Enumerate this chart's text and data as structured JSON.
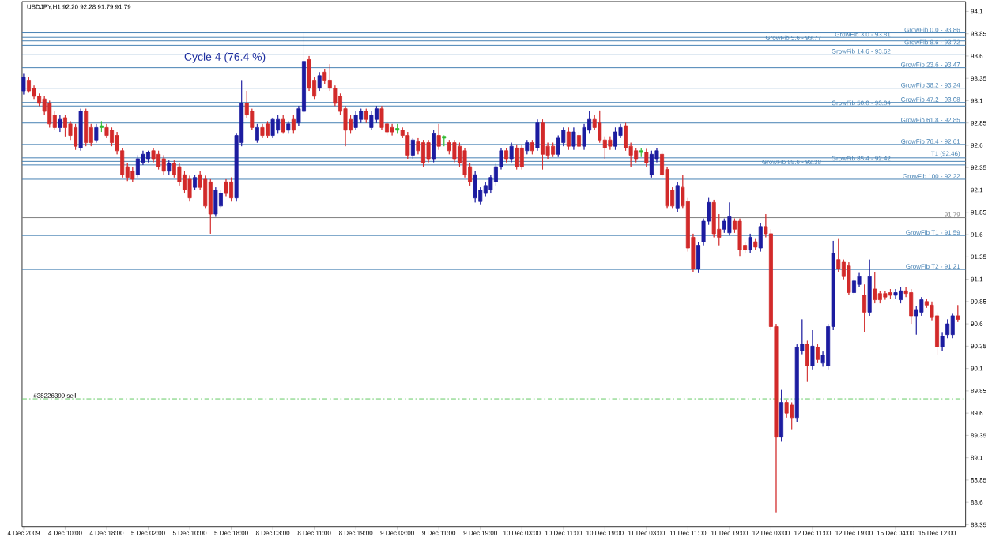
{
  "chart_data": {
    "type": "candlestick",
    "title": "USDJPY,H1  92.20 92.28 91.79 91.79",
    "annotations": [
      "Cycle 4  (76.4 %)"
    ],
    "categories": [
      "4 Dec 2009",
      null,
      null,
      null,
      null,
      null,
      null,
      null,
      "4 Dec 10:00",
      null,
      null,
      null,
      null,
      null,
      null,
      null,
      "4 Dec 18:00",
      null,
      null,
      null,
      null,
      null,
      null,
      null,
      "5 Dec 02:00",
      null,
      null,
      null,
      null,
      null,
      null,
      null,
      "5 Dec 10:00",
      null,
      null,
      null,
      null,
      null,
      null,
      null,
      "5 Dec 18:00",
      null,
      null,
      null,
      null,
      null,
      null,
      null,
      "8 Dec 03:00",
      null,
      null,
      null,
      null,
      null,
      null,
      null,
      "8 Dec 11:00",
      null,
      null,
      null,
      null,
      null,
      null,
      null,
      "8 Dec 19:00",
      null,
      null,
      null,
      null,
      null,
      null,
      null,
      "9 Dec 03:00",
      null,
      null,
      null,
      null,
      null,
      null,
      null,
      "9 Dec 11:00",
      null,
      null,
      null,
      null,
      null,
      null,
      null,
      "9 Dec 19:00",
      null,
      null,
      null,
      null,
      null,
      null,
      null,
      "10 Dec 03:00",
      null,
      null,
      null,
      null,
      null,
      null,
      null,
      "10 Dec 11:00",
      null,
      null,
      null,
      null,
      null,
      null,
      null,
      "10 Dec 19:00",
      null,
      null,
      null,
      null,
      null,
      null,
      null,
      "11 Dec 03:00",
      null,
      null,
      null,
      null,
      null,
      null,
      null,
      "11 Dec 11:00",
      null,
      null,
      null,
      null,
      null,
      null,
      null,
      "11 Dec 19:00",
      null,
      null,
      null,
      null,
      null,
      null,
      null,
      "12 Dec 03:00",
      null,
      null,
      null,
      null,
      null,
      null,
      null,
      "12 Dec 11:00",
      null,
      null,
      null,
      null,
      null,
      null,
      null,
      "12 Dec 19:00",
      null,
      null,
      null,
      null,
      null,
      null,
      null,
      "15 Dec 04:00",
      null,
      null,
      null,
      null,
      null,
      null,
      null,
      "15 Dec 12:00",
      null,
      null,
      null,
      null
    ],
    "ohlc": [
      [
        93.21,
        93.4,
        93.17,
        93.36
      ],
      [
        93.33,
        93.36,
        93.19,
        93.21
      ],
      [
        93.24,
        93.27,
        93.12,
        93.15
      ],
      [
        93.15,
        93.18,
        93.04,
        93.07
      ],
      [
        93.12,
        93.15,
        92.94,
        92.98
      ],
      [
        93.07,
        93.1,
        92.8,
        92.84
      ],
      [
        92.94,
        92.98,
        92.77,
        92.8
      ],
      [
        92.8,
        92.94,
        92.75,
        92.89
      ],
      [
        92.91,
        92.94,
        92.7,
        92.8
      ],
      [
        92.84,
        92.87,
        92.66,
        92.71
      ],
      [
        92.8,
        92.84,
        92.55,
        92.59
      ],
      [
        92.57,
        93.01,
        92.54,
        92.98
      ],
      [
        92.98,
        93.01,
        92.59,
        92.63
      ],
      [
        92.8,
        92.84,
        92.59,
        92.63
      ],
      [
        92.66,
        92.84,
        92.63,
        92.8
      ],
      [
        92.8,
        92.87,
        92.75,
        92.82
      ],
      [
        92.8,
        92.84,
        92.68,
        92.71
      ],
      [
        92.77,
        92.8,
        92.59,
        92.63
      ],
      [
        92.71,
        92.75,
        92.5,
        92.54
      ],
      [
        92.54,
        92.57,
        92.24,
        92.27
      ],
      [
        92.36,
        92.4,
        92.2,
        92.24
      ],
      [
        92.31,
        92.36,
        92.19,
        92.22
      ],
      [
        92.27,
        92.49,
        92.24,
        92.45
      ],
      [
        92.41,
        92.54,
        92.38,
        92.5
      ],
      [
        92.45,
        92.54,
        92.41,
        92.52
      ],
      [
        92.54,
        92.57,
        92.41,
        92.45
      ],
      [
        92.5,
        92.54,
        92.33,
        92.36
      ],
      [
        92.45,
        92.49,
        92.27,
        92.31
      ],
      [
        92.31,
        92.43,
        92.27,
        92.4
      ],
      [
        92.4,
        92.43,
        92.24,
        92.27
      ],
      [
        92.36,
        92.4,
        92.15,
        92.19
      ],
      [
        92.27,
        92.31,
        92.06,
        92.1
      ],
      [
        92.22,
        92.26,
        91.97,
        92.01
      ],
      [
        92.13,
        92.27,
        92.1,
        92.24
      ],
      [
        92.27,
        92.31,
        92.1,
        92.13
      ],
      [
        92.22,
        92.26,
        91.89,
        91.92
      ],
      [
        92.19,
        92.22,
        91.61,
        91.83
      ],
      [
        91.83,
        92.13,
        91.8,
        92.1
      ],
      [
        91.92,
        92.1,
        91.89,
        92.06
      ],
      [
        92.19,
        92.22,
        92.03,
        92.06
      ],
      [
        92.19,
        92.24,
        91.97,
        92.01
      ],
      [
        92.01,
        92.73,
        91.97,
        92.71
      ],
      [
        92.63,
        93.33,
        92.59,
        93.07
      ],
      [
        93.07,
        93.21,
        92.91,
        92.94
      ],
      [
        92.98,
        93.01,
        92.77,
        92.8
      ],
      [
        92.66,
        92.84,
        92.63,
        92.8
      ],
      [
        92.8,
        92.84,
        92.68,
        92.71
      ],
      [
        92.84,
        92.87,
        92.68,
        92.71
      ],
      [
        92.71,
        92.91,
        92.68,
        92.89
      ],
      [
        92.77,
        92.94,
        92.73,
        92.89
      ],
      [
        92.89,
        92.94,
        92.73,
        92.75
      ],
      [
        92.77,
        92.87,
        92.73,
        92.84
      ],
      [
        92.89,
        92.94,
        92.73,
        92.77
      ],
      [
        92.85,
        93.04,
        92.82,
        93.01
      ],
      [
        92.98,
        93.86,
        92.94,
        93.54
      ],
      [
        93.56,
        93.6,
        93.21,
        93.24
      ],
      [
        93.33,
        93.36,
        93.12,
        93.15
      ],
      [
        93.24,
        93.42,
        93.21,
        93.38
      ],
      [
        93.42,
        93.45,
        93.29,
        93.33
      ],
      [
        93.33,
        93.51,
        93.21,
        93.24
      ],
      [
        93.24,
        93.27,
        93.04,
        93.07
      ],
      [
        93.15,
        93.18,
        92.94,
        92.98
      ],
      [
        93.01,
        93.04,
        92.59,
        92.77
      ],
      [
        92.89,
        92.94,
        92.73,
        92.77
      ],
      [
        92.8,
        92.98,
        92.77,
        92.94
      ],
      [
        92.89,
        93.01,
        92.85,
        92.98
      ],
      [
        92.98,
        93.01,
        92.85,
        92.89
      ],
      [
        92.8,
        92.98,
        92.77,
        92.94
      ],
      [
        92.89,
        93.04,
        92.85,
        93.01
      ],
      [
        93.01,
        93.04,
        92.77,
        92.8
      ],
      [
        92.84,
        92.87,
        92.71,
        92.75
      ],
      [
        92.8,
        92.84,
        92.71,
        92.75
      ],
      [
        92.77,
        92.84,
        92.73,
        92.79
      ],
      [
        92.77,
        92.8,
        92.68,
        92.71
      ],
      [
        92.71,
        92.75,
        92.45,
        92.49
      ],
      [
        92.49,
        92.68,
        92.45,
        92.66
      ],
      [
        92.64,
        92.68,
        92.5,
        92.54
      ],
      [
        92.63,
        92.66,
        92.36,
        92.4
      ],
      [
        92.63,
        92.66,
        92.41,
        92.45
      ],
      [
        92.45,
        92.77,
        92.41,
        92.73
      ],
      [
        92.71,
        92.84,
        92.55,
        92.59
      ],
      [
        92.68,
        92.71,
        92.59,
        92.7
      ],
      [
        92.63,
        92.66,
        92.5,
        92.54
      ],
      [
        92.63,
        92.66,
        92.41,
        92.45
      ],
      [
        92.59,
        92.63,
        92.36,
        92.4
      ],
      [
        92.54,
        92.57,
        92.24,
        92.27
      ],
      [
        92.36,
        92.4,
        92.15,
        92.19
      ],
      [
        92.01,
        92.31,
        91.96,
        92.27
      ],
      [
        91.97,
        92.13,
        91.94,
        92.1
      ],
      [
        92.06,
        92.19,
        92.03,
        92.15
      ],
      [
        92.1,
        92.27,
        92.06,
        92.24
      ],
      [
        92.19,
        92.4,
        92.15,
        92.36
      ],
      [
        92.36,
        92.57,
        92.33,
        92.54
      ],
      [
        92.54,
        92.57,
        92.41,
        92.45
      ],
      [
        92.45,
        92.63,
        92.41,
        92.59
      ],
      [
        92.57,
        92.61,
        92.33,
        92.36
      ],
      [
        92.57,
        92.61,
        92.33,
        92.36
      ],
      [
        92.54,
        92.66,
        92.5,
        92.63
      ],
      [
        92.63,
        92.66,
        92.5,
        92.54
      ],
      [
        92.57,
        92.89,
        92.54,
        92.85
      ],
      [
        92.85,
        92.89,
        92.33,
        92.5
      ],
      [
        92.59,
        92.63,
        92.45,
        92.49
      ],
      [
        92.59,
        92.63,
        92.47,
        92.5
      ],
      [
        92.5,
        92.71,
        92.47,
        92.68
      ],
      [
        92.63,
        92.8,
        92.59,
        92.77
      ],
      [
        92.75,
        92.8,
        92.55,
        92.59
      ],
      [
        92.59,
        92.8,
        92.55,
        92.75
      ],
      [
        92.71,
        92.75,
        92.55,
        92.59
      ],
      [
        92.59,
        92.84,
        92.55,
        92.8
      ],
      [
        92.77,
        92.98,
        92.73,
        92.89
      ],
      [
        92.89,
        92.94,
        92.77,
        92.8
      ],
      [
        92.85,
        92.99,
        92.63,
        92.66
      ],
      [
        92.66,
        92.7,
        92.45,
        92.57
      ],
      [
        92.66,
        92.7,
        92.55,
        92.59
      ],
      [
        92.59,
        92.8,
        92.55,
        92.75
      ],
      [
        92.71,
        92.84,
        92.68,
        92.8
      ],
      [
        92.82,
        92.85,
        92.54,
        92.57
      ],
      [
        92.59,
        92.63,
        92.36,
        92.49
      ],
      [
        92.54,
        92.57,
        92.41,
        92.45
      ],
      [
        92.52,
        92.57,
        92.47,
        92.54
      ],
      [
        92.52,
        92.56,
        92.36,
        92.4
      ],
      [
        92.27,
        92.54,
        92.24,
        92.5
      ],
      [
        92.45,
        92.57,
        92.41,
        92.54
      ],
      [
        92.5,
        92.54,
        92.24,
        92.27
      ],
      [
        92.33,
        92.36,
        91.89,
        91.92
      ],
      [
        92.1,
        92.13,
        91.89,
        91.92
      ],
      [
        91.89,
        92.19,
        91.85,
        92.15
      ],
      [
        92.13,
        92.27,
        91.89,
        91.92
      ],
      [
        91.97,
        92.01,
        91.41,
        91.45
      ],
      [
        91.57,
        91.61,
        91.18,
        91.22
      ],
      [
        91.22,
        91.52,
        91.17,
        91.48
      ],
      [
        91.52,
        91.78,
        91.48,
        91.75
      ],
      [
        91.75,
        92.01,
        91.71,
        91.96
      ],
      [
        91.96,
        91.99,
        91.57,
        91.61
      ],
      [
        91.66,
        91.83,
        91.48,
        91.57
      ],
      [
        91.66,
        91.78,
        91.62,
        91.75
      ],
      [
        91.62,
        91.96,
        91.59,
        91.8
      ],
      [
        91.75,
        91.78,
        91.62,
        91.66
      ],
      [
        91.75,
        91.78,
        91.36,
        91.43
      ],
      [
        91.48,
        91.52,
        91.39,
        91.43
      ],
      [
        91.43,
        91.61,
        91.39,
        91.57
      ],
      [
        91.52,
        91.55,
        91.43,
        91.46
      ],
      [
        91.45,
        91.73,
        91.41,
        91.69
      ],
      [
        91.69,
        91.83,
        91.57,
        91.61
      ],
      [
        91.61,
        91.66,
        90.53,
        90.57
      ],
      [
        90.57,
        90.6,
        88.49,
        89.33
      ],
      [
        89.33,
        89.86,
        89.28,
        89.72
      ],
      [
        89.72,
        89.75,
        89.55,
        89.6
      ],
      [
        89.69,
        89.72,
        89.42,
        89.55
      ],
      [
        89.55,
        90.37,
        89.5,
        90.34
      ],
      [
        90.3,
        90.65,
        90.26,
        90.37
      ],
      [
        90.37,
        90.41,
        89.95,
        90.13
      ],
      [
        90.13,
        90.53,
        90.09,
        90.35
      ],
      [
        90.34,
        90.37,
        90.16,
        90.2
      ],
      [
        90.16,
        90.29,
        90.12,
        90.25
      ],
      [
        90.13,
        90.6,
        90.09,
        90.57
      ],
      [
        90.57,
        91.53,
        90.53,
        91.39
      ],
      [
        91.32,
        91.55,
        91.18,
        91.22
      ],
      [
        91.29,
        91.32,
        91.1,
        91.13
      ],
      [
        91.25,
        91.29,
        90.92,
        90.95
      ],
      [
        90.95,
        91.11,
        90.92,
        91.08
      ],
      [
        91.04,
        91.17,
        91.01,
        91.13
      ],
      [
        90.92,
        91.04,
        90.51,
        90.73
      ],
      [
        90.73,
        91.32,
        90.69,
        91.13
      ],
      [
        90.99,
        91.18,
        90.83,
        90.87
      ],
      [
        90.94,
        90.97,
        90.83,
        90.87
      ],
      [
        90.94,
        90.97,
        90.87,
        90.9
      ],
      [
        90.95,
        90.99,
        90.88,
        90.92
      ],
      [
        90.92,
        90.99,
        90.88,
        90.95
      ],
      [
        90.87,
        91.01,
        90.83,
        90.97
      ],
      [
        90.97,
        91.01,
        90.9,
        90.94
      ],
      [
        90.95,
        90.99,
        90.6,
        90.69
      ],
      [
        90.69,
        90.8,
        90.48,
        90.76
      ],
      [
        90.73,
        90.9,
        90.69,
        90.87
      ],
      [
        90.85,
        90.88,
        90.78,
        90.81
      ],
      [
        90.81,
        90.85,
        90.64,
        90.67
      ],
      [
        90.69,
        90.73,
        90.25,
        90.34
      ],
      [
        90.34,
        90.5,
        90.3,
        90.46
      ],
      [
        90.48,
        90.65,
        90.44,
        90.6
      ],
      [
        90.48,
        90.72,
        90.44,
        90.69
      ],
      [
        90.69,
        90.81,
        90.62,
        90.65
      ]
    ],
    "colors": [
      "#1c1ca0",
      "#d22a2a",
      "#d22a2a",
      "#d22a2a",
      "#d22a2a",
      "#d22a2a",
      "#d22a2a",
      "#1c1ca0",
      "#d22a2a",
      "#d22a2a",
      "#d22a2a",
      "#1c1ca0",
      "#d22a2a",
      "#d22a2a",
      "#1c1ca0",
      "#33bb33",
      "#d22a2a",
      "#d22a2a",
      "#d22a2a",
      "#d22a2a",
      "#d22a2a",
      "#d22a2a",
      "#1c1ca0",
      "#1c1ca0",
      "#1c1ca0",
      "#d22a2a",
      "#d22a2a",
      "#d22a2a",
      "#1c1ca0",
      "#d22a2a",
      "#d22a2a",
      "#d22a2a",
      "#d22a2a",
      "#1c1ca0",
      "#d22a2a",
      "#d22a2a",
      "#d22a2a",
      "#1c1ca0",
      "#1c1ca0",
      "#d22a2a",
      "#d22a2a",
      "#1c1ca0",
      "#1c1ca0",
      "#d22a2a",
      "#d22a2a",
      "#1c1ca0",
      "#d22a2a",
      "#d22a2a",
      "#1c1ca0",
      "#1c1ca0",
      "#d22a2a",
      "#1c1ca0",
      "#d22a2a",
      "#1c1ca0",
      "#1c1ca0",
      "#d22a2a",
      "#d22a2a",
      "#1c1ca0",
      "#d22a2a",
      "#d22a2a",
      "#d22a2a",
      "#d22a2a",
      "#d22a2a",
      "#d22a2a",
      "#1c1ca0",
      "#1c1ca0",
      "#d22a2a",
      "#1c1ca0",
      "#1c1ca0",
      "#d22a2a",
      "#d22a2a",
      "#d22a2a",
      "#33bb33",
      "#d22a2a",
      "#d22a2a",
      "#1c1ca0",
      "#d22a2a",
      "#d22a2a",
      "#d22a2a",
      "#1c1ca0",
      "#d22a2a",
      "#33bb33",
      "#d22a2a",
      "#d22a2a",
      "#d22a2a",
      "#d22a2a",
      "#d22a2a",
      "#1c1ca0",
      "#1c1ca0",
      "#1c1ca0",
      "#1c1ca0",
      "#1c1ca0",
      "#1c1ca0",
      "#d22a2a",
      "#1c1ca0",
      "#d22a2a",
      "#d22a2a",
      "#1c1ca0",
      "#d22a2a",
      "#1c1ca0",
      "#d22a2a",
      "#d22a2a",
      "#d22a2a",
      "#1c1ca0",
      "#1c1ca0",
      "#d22a2a",
      "#1c1ca0",
      "#d22a2a",
      "#1c1ca0",
      "#1c1ca0",
      "#d22a2a",
      "#d22a2a",
      "#d22a2a",
      "#d22a2a",
      "#1c1ca0",
      "#1c1ca0",
      "#d22a2a",
      "#d22a2a",
      "#d22a2a",
      "#33bb33",
      "#d22a2a",
      "#1c1ca0",
      "#1c1ca0",
      "#d22a2a",
      "#d22a2a",
      "#d22a2a",
      "#1c1ca0",
      "#d22a2a",
      "#d22a2a",
      "#d22a2a",
      "#1c1ca0",
      "#1c1ca0",
      "#1c1ca0",
      "#d22a2a",
      "#d22a2a",
      "#1c1ca0",
      "#1c1ca0",
      "#d22a2a",
      "#d22a2a",
      "#d22a2a",
      "#1c1ca0",
      "#d22a2a",
      "#1c1ca0",
      "#d22a2a",
      "#d22a2a",
      "#d22a2a",
      "#1c1ca0",
      "#d22a2a",
      "#d22a2a",
      "#1c1ca0",
      "#1c1ca0",
      "#d22a2a",
      "#1c1ca0",
      "#d22a2a",
      "#1c1ca0",
      "#1c1ca0",
      "#1c1ca0",
      "#d22a2a",
      "#d22a2a",
      "#d22a2a",
      "#1c1ca0",
      "#1c1ca0",
      "#d22a2a",
      "#1c1ca0",
      "#d22a2a",
      "#d22a2a",
      "#d22a2a",
      "#d22a2a",
      "#1c1ca0",
      "#1c1ca0",
      "#d22a2a",
      "#d22a2a",
      "#1c1ca0",
      "#1c1ca0",
      "#d22a2a",
      "#d22a2a",
      "#d22a2a",
      "#1c1ca0",
      "#1c1ca0",
      "#1c1ca0",
      "#d22a2a"
    ],
    "ylim": [
      88.33,
      94.21
    ],
    "yticks": [
      94.1,
      93.85,
      93.6,
      93.35,
      93.1,
      92.85,
      92.6,
      92.35,
      92.1,
      91.85,
      91.6,
      91.35,
      91.1,
      90.85,
      90.6,
      90.35,
      90.1,
      89.85,
      89.6,
      89.35,
      89.1,
      88.85,
      88.6,
      88.35
    ],
    "ref_lines": [
      {
        "axis": "y",
        "value": 93.86,
        "label": "GrowFib 0.0 - 93.86",
        "color": "#4682b4"
      },
      {
        "axis": "y",
        "value": 93.81,
        "label": "GrowFib 3.0 - 93.81",
        "color": "#4682b4"
      },
      {
        "axis": "y",
        "value": 93.77,
        "label": "GrowFib 5.6 - 93.77",
        "color": "#4682b4"
      },
      {
        "axis": "y",
        "value": 93.72,
        "label": "GrowFib 8.6 - 93.72",
        "color": "#4682b4"
      },
      {
        "axis": "y",
        "value": 93.62,
        "label": "GrowFib 14.6 - 93.62",
        "color": "#4682b4"
      },
      {
        "axis": "y",
        "value": 93.47,
        "label": "GrowFib 23.6 - 93.47",
        "color": "#4682b4"
      },
      {
        "axis": "y",
        "value": 93.24,
        "label": "GrowFib 38.2 - 93.24",
        "color": "#4682b4"
      },
      {
        "axis": "y",
        "value": 93.08,
        "label": "GrowFib 47.2 - 93.08",
        "color": "#4682b4"
      },
      {
        "axis": "y",
        "value": 93.04,
        "label": "GrowFib 50.0 - 93.04",
        "color": "#4682b4"
      },
      {
        "axis": "y",
        "value": 92.85,
        "label": "GrowFib 61.8 - 92.85",
        "color": "#4682b4"
      },
      {
        "axis": "y",
        "value": 92.61,
        "label": "GrowFib 76.4 - 92.61",
        "color": "#4682b4"
      },
      {
        "axis": "y",
        "value": 92.46,
        "label": "T1 (92.46)",
        "color": "#4682b4"
      },
      {
        "axis": "y",
        "value": 92.42,
        "label": "GrowFib 85.4 - 92.42",
        "color": "#4682b4"
      },
      {
        "axis": "y",
        "value": 92.38,
        "label": "GrowFib 88.6 - 92.38",
        "color": "#4682b4"
      },
      {
        "axis": "y",
        "value": 92.22,
        "label": "GrowFib 100 - 92.22",
        "color": "#4682b4"
      },
      {
        "axis": "y",
        "value": 91.79,
        "label": "91.79",
        "color": "#808080"
      },
      {
        "axis": "y",
        "value": 91.59,
        "label": "GrowFib T1 - 91.59",
        "color": "#4682b4"
      },
      {
        "axis": "y",
        "value": 91.21,
        "label": "GrowFib T2 - 91.21",
        "color": "#4682b4"
      },
      {
        "axis": "y",
        "value": 89.76,
        "label": "#38226399 sell",
        "color": "#66cc66",
        "line_style": "dashed"
      }
    ]
  }
}
